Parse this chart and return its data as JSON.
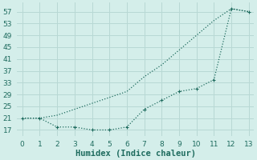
{
  "xlabel": "Humidex (Indice chaleur)",
  "background_color": "#d4eeea",
  "grid_color": "#b8d8d4",
  "line_color": "#1e6b5e",
  "x_upper": [
    0,
    1,
    2,
    3,
    4,
    5,
    6,
    7,
    8,
    9,
    10,
    11,
    12,
    13
  ],
  "y_upper": [
    21,
    21,
    22,
    24,
    26,
    28,
    30,
    35,
    39,
    44,
    49,
    54,
    58,
    57
  ],
  "x_lower": [
    0,
    1,
    2,
    3,
    4,
    5,
    6,
    7,
    8,
    9,
    10,
    11,
    12,
    13
  ],
  "y_lower": [
    21,
    21,
    18,
    18,
    17,
    17,
    18,
    24,
    27,
    30,
    31,
    34,
    58,
    57
  ],
  "xlim": [
    -0.3,
    13.3
  ],
  "ylim": [
    15,
    60
  ],
  "yticks": [
    17,
    21,
    25,
    29,
    33,
    37,
    41,
    45,
    49,
    53,
    57
  ],
  "xticks": [
    0,
    1,
    2,
    3,
    4,
    5,
    6,
    7,
    8,
    9,
    10,
    11,
    12,
    13
  ],
  "tick_fontsize": 6.5,
  "xlabel_fontsize": 7.5
}
